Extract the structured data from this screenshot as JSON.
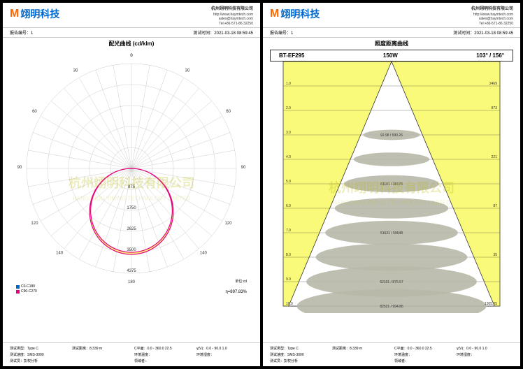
{
  "company": {
    "name_cn": "杭州翊明科技有限公司",
    "name_en": "HANGZHOU YIMING TECHNOLOGY LIMITED",
    "url": "http://www.haymtech.com",
    "email": "sales@haymtech.com",
    "tel": "Tel:+86-571-86 32250"
  },
  "logo": {
    "mark": "M",
    "text": "翊明科技"
  },
  "subheader": {
    "report_label": "报告编号：",
    "report_val": "1",
    "date_label": "测试时间：",
    "date_val": "2021-03-18 08:59:45"
  },
  "watermark": {
    "main": "杭州翊明科技有限公司",
    "sub": "HANGZHOU YIMING TECHNOLOGY LIMITED"
  },
  "polar": {
    "title": "配光曲线 (cd/klm)",
    "rings": [
      875,
      1750,
      2625,
      3500,
      4375
    ],
    "angles": [
      0,
      30,
      60,
      90,
      120,
      140,
      180
    ],
    "curve_color": "#e6007e",
    "fill_color": "#f9f97a",
    "legend": [
      {
        "c": "#0066cc",
        "t": "C0-C180"
      },
      {
        "c": "#e6007e",
        "t": "C90-C270"
      }
    ],
    "eta": "η=897.83%",
    "unit": "单位:cd",
    "grid_color": "#cccccc",
    "bg": "#ffffff"
  },
  "cone": {
    "title": "照度距离曲线",
    "model": "BT-EF295",
    "watt": "150W",
    "angles": "103° / 156°",
    "bg": "#f9f97a",
    "ellipse_color": "#b8b8a8",
    "line_color": "#333",
    "distances": [
      1.0,
      2.0,
      3.0,
      4.0,
      5.0,
      6.0,
      7.0,
      8.0,
      9.0,
      10.0
    ],
    "right_vals": [
      "2469",
      "873",
      "",
      "221",
      "",
      "87",
      "",
      "35",
      "",
      ""
    ],
    "labels": [
      "",
      "",
      "92.98 / 590.26",
      "",
      "61101 / 38178",
      "",
      "51521 / 59648",
      "",
      "62101 / 875.57",
      "82521 / 994.86"
    ],
    "bottom_right": "1305.05"
  },
  "footer": {
    "l1": "测试类型：Type C",
    "l2": "测试距离：8.339 m",
    "l3": "C平面：0.0 - 360.0 22.5",
    "l4": "γ(V)：0.0 - 90.0 1.0",
    "l5": "测试速度：SMS-3000",
    "l6": "",
    "l7": "环境温度：",
    "l8": "环境湿度：",
    "l9": "测试员：彭权分析",
    "l10": "",
    "l11": "领域者：",
    "l12": ""
  }
}
